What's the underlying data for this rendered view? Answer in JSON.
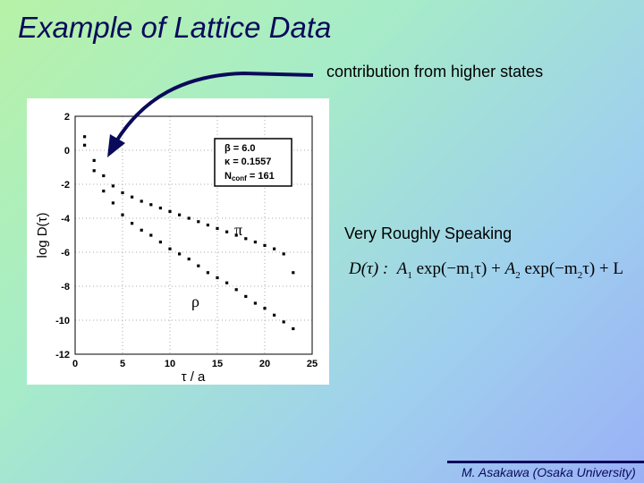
{
  "slide": {
    "title": "Example of Lattice Data",
    "annotation_top": "contribution from higher states",
    "annotation_mid": "Very Roughly Speaking",
    "formula": {
      "lhs": "D(τ) :",
      "A1": "A",
      "A1_sub": "1",
      "exp1": " exp(−m",
      "m1_sub": "1",
      "tau1": "τ) + ",
      "A2": "A",
      "A2_sub": "2",
      "exp2": " exp(−m",
      "m2_sub": "2",
      "tau2": "τ) + L"
    },
    "footer": "M. Asakawa (Osaka University)"
  },
  "chart_data": {
    "type": "scatter",
    "xlabel": "τ / a",
    "ylabel": "log D(τ)",
    "xlim": [
      0,
      25
    ],
    "ylim": [
      -12,
      2
    ],
    "xticks": [
      "0",
      "5",
      "10",
      "15",
      "20",
      "25"
    ],
    "yticks": [
      "2",
      "0",
      "-2",
      "-4",
      "-6",
      "-8",
      "-10",
      "-12"
    ],
    "grid": true,
    "legend": {
      "position": "top-right",
      "lines": [
        "β = 6.0",
        "κ = 0.1557",
        "N",
        "conf",
        " = 161"
      ]
    },
    "series": [
      {
        "name": "π",
        "x": [
          1,
          2,
          3,
          4,
          5,
          6,
          7,
          8,
          9,
          10,
          11,
          12,
          13,
          14,
          15,
          16,
          17,
          18,
          19,
          20,
          21,
          22,
          23
        ],
        "y": [
          0.8,
          -0.6,
          -1.5,
          -2.1,
          -2.5,
          -2.75,
          -3.0,
          -3.2,
          -3.4,
          -3.6,
          -3.8,
          -4.0,
          -4.2,
          -4.4,
          -4.6,
          -4.8,
          -5.0,
          -5.2,
          -5.4,
          -5.6,
          -5.8,
          -6.1,
          -7.2
        ]
      },
      {
        "name": "ρ",
        "x": [
          1,
          2,
          3,
          4,
          5,
          6,
          7,
          8,
          9,
          10,
          11,
          12,
          13,
          14,
          15,
          16,
          17,
          18,
          19,
          20,
          21,
          22,
          23
        ],
        "y": [
          0.3,
          -1.2,
          -2.4,
          -3.1,
          -3.8,
          -4.3,
          -4.7,
          -5.0,
          -5.4,
          -5.8,
          -6.1,
          -6.4,
          -6.8,
          -7.2,
          -7.5,
          -7.8,
          -8.2,
          -8.6,
          -9.0,
          -9.3,
          -9.7,
          -10.1,
          -10.5
        ]
      }
    ]
  }
}
